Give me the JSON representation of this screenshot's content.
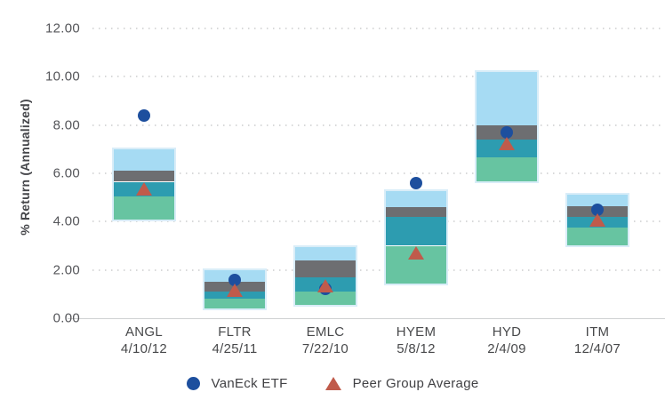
{
  "chart_data": {
    "type": "range-bar",
    "title": "",
    "xlabel": "",
    "ylabel": "% Return (Annualized)",
    "ylim": [
      0,
      12
    ],
    "grid": "dotted-horizontal",
    "legend_position": "bottom-center",
    "yticks": [
      {
        "value": 12,
        "label": "12.00"
      },
      {
        "value": 10,
        "label": "10.00"
      },
      {
        "value": 8,
        "label": "8.00"
      },
      {
        "value": 6,
        "label": "6.00"
      },
      {
        "value": 4,
        "label": "4.00"
      },
      {
        "value": 2,
        "label": "2.00"
      },
      {
        "value": 0,
        "label": "0.00"
      }
    ],
    "segment_order_bottom_to_top": [
      "green",
      "teal",
      "gray",
      "light_blue"
    ],
    "segment_colors": {
      "light_blue": "#a6dbf3",
      "gray": "#6d6e71",
      "teal": "#2d9cb0",
      "green": "#67c4a1"
    },
    "categories": [
      {
        "ticker": "ANGL",
        "date": "4/10/12",
        "segments": {
          "green": [
            4.1,
            5.05
          ],
          "teal": [
            5.05,
            5.65
          ],
          "gray": [
            5.65,
            6.1
          ],
          "light_blue": [
            6.1,
            7.0
          ]
        },
        "vaneck_etf": 8.4,
        "peer_group_avg": 5.35
      },
      {
        "ticker": "FLTR",
        "date": "4/25/11",
        "segments": {
          "green": [
            0.4,
            0.8
          ],
          "teal": [
            0.8,
            1.1
          ],
          "gray": [
            1.1,
            1.5
          ],
          "light_blue": [
            1.5,
            2.0
          ]
        },
        "vaneck_etf": 1.6,
        "peer_group_avg": 1.15
      },
      {
        "ticker": "EMLC",
        "date": "7/22/10",
        "segments": {
          "green": [
            0.55,
            1.1
          ],
          "teal": [
            1.1,
            1.7
          ],
          "gray": [
            1.7,
            2.4
          ],
          "light_blue": [
            2.4,
            2.95
          ]
        },
        "vaneck_etf": 1.2,
        "peer_group_avg": 1.35
      },
      {
        "ticker": "HYEM",
        "date": "5/8/12",
        "segments": {
          "green": [
            1.45,
            3.0
          ],
          "teal": [
            3.0,
            4.2
          ],
          "gray": [
            4.2,
            4.6
          ],
          "light_blue": [
            4.6,
            5.25
          ]
        },
        "vaneck_etf": 5.6,
        "peer_group_avg": 2.7
      },
      {
        "ticker": "HYD",
        "date": "2/4/09",
        "segments": {
          "green": [
            5.65,
            6.65
          ],
          "teal": [
            6.65,
            7.4
          ],
          "gray": [
            7.4,
            8.0
          ],
          "light_blue": [
            8.0,
            10.2
          ]
        },
        "vaneck_etf": 7.7,
        "peer_group_avg": 7.25
      },
      {
        "ticker": "ITM",
        "date": "12/4/07",
        "segments": {
          "green": [
            3.0,
            3.75
          ],
          "teal": [
            3.75,
            4.2
          ],
          "gray": [
            4.2,
            4.65
          ],
          "light_blue": [
            4.65,
            5.1
          ]
        },
        "vaneck_etf": 4.5,
        "peer_group_avg": 4.05
      }
    ],
    "legend": [
      {
        "label": "VanEck ETF",
        "marker": "circle",
        "color": "#1d4f9e"
      },
      {
        "label": "Peer Group Average",
        "marker": "triangle",
        "color": "#c05b4b"
      }
    ],
    "colors": {
      "vaneck_etf_marker": "#1d4f9e",
      "peer_avg_marker": "#c05b4b",
      "axis_text": "#55565a",
      "grid_line": "#d8d9da",
      "axis_line": "#cfd1d2",
      "bar_halo": "#d9edf8",
      "background": "#ffffff"
    }
  }
}
